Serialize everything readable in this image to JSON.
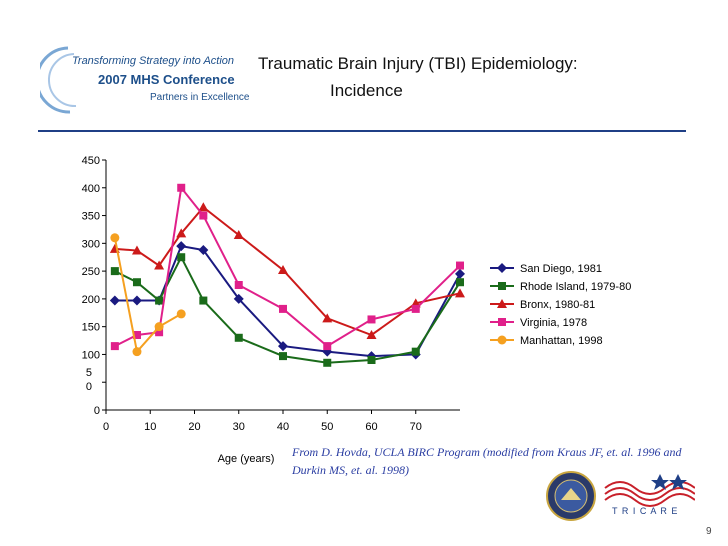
{
  "header": {
    "logo_line1": "Transforming Strategy into Action",
    "logo_line2": "2007 MHS Conference",
    "logo_line3": "Partners in Excellence",
    "title_line1": "Traumatic Brain Injury (TBI) Epidemiology:",
    "title_line2": "Incidence"
  },
  "source_note": "From D. Hovda, UCLA BIRC Program (modified from Kraus JF, et. al. 1996 and Durkin MS, et. al. 1998)",
  "page_number": "9",
  "tricare_text": "T R I C A R E",
  "colors": {
    "rule": "#1f3f86",
    "source_text": "#2a3da2"
  },
  "chart_data": {
    "type": "line",
    "title": "",
    "xlabel": "Age (years)",
    "ylabel": "",
    "xlim": [
      0,
      80
    ],
    "ylim": [
      0,
      450
    ],
    "x_ticks": [
      "0",
      "10",
      "20",
      "30",
      "40",
      "50",
      "60",
      "70"
    ],
    "y_ticks": [
      "450",
      "400",
      "350",
      "300",
      "250",
      "200",
      "150",
      "100",
      "5\n0",
      "0"
    ],
    "grid": false,
    "legend_position": "right",
    "series": [
      {
        "name": "San Diego, 1981",
        "color": "#1a1a80",
        "marker": "diamond",
        "points": [
          [
            2,
            197
          ],
          [
            7,
            197
          ],
          [
            12,
            197
          ],
          [
            17,
            295
          ],
          [
            22,
            288
          ],
          [
            30,
            200
          ],
          [
            40,
            115
          ],
          [
            50,
            105
          ],
          [
            60,
            97
          ],
          [
            70,
            100
          ],
          [
            80,
            245
          ]
        ]
      },
      {
        "name": "Rhode Island, 1979-80",
        "color": "#1a6b1a",
        "marker": "square",
        "points": [
          [
            2,
            250
          ],
          [
            7,
            230
          ],
          [
            12,
            197
          ],
          [
            17,
            275
          ],
          [
            22,
            197
          ],
          [
            30,
            130
          ],
          [
            40,
            97
          ],
          [
            50,
            85
          ],
          [
            60,
            90
          ],
          [
            70,
            105
          ],
          [
            80,
            230
          ]
        ]
      },
      {
        "name": "Bronx, 1980-81",
        "color": "#cc1a1a",
        "marker": "triangle",
        "points": [
          [
            2,
            290
          ],
          [
            7,
            287
          ],
          [
            12,
            260
          ],
          [
            17,
            318
          ],
          [
            22,
            365
          ],
          [
            30,
            315
          ],
          [
            40,
            252
          ],
          [
            50,
            165
          ],
          [
            60,
            135
          ],
          [
            70,
            192
          ],
          [
            80,
            210
          ]
        ]
      },
      {
        "name": "Virginia, 1978",
        "color": "#e0208a",
        "marker": "square",
        "points": [
          [
            2,
            115
          ],
          [
            7,
            135
          ],
          [
            12,
            140
          ],
          [
            17,
            400
          ],
          [
            22,
            350
          ],
          [
            30,
            225
          ],
          [
            40,
            182
          ],
          [
            50,
            115
          ],
          [
            60,
            163
          ],
          [
            70,
            182
          ],
          [
            80,
            260
          ]
        ]
      },
      {
        "name": "Manhattan, 1998",
        "color": "#f5a020",
        "marker": "circle",
        "points": [
          [
            2,
            310
          ],
          [
            7,
            105
          ],
          [
            12,
            150
          ],
          [
            17,
            173
          ]
        ]
      }
    ]
  }
}
